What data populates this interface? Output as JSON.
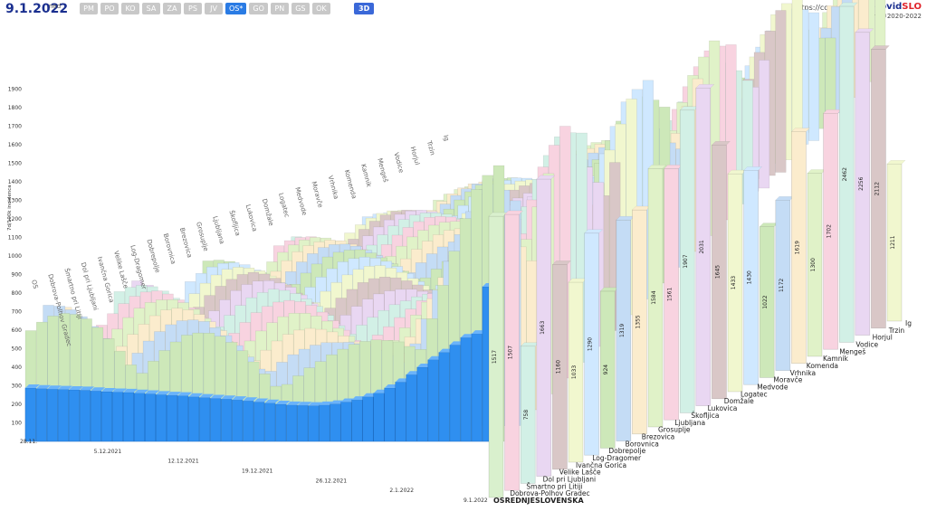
{
  "header": {
    "date": "9.1.2022",
    "weekday": "ned",
    "tabs": [
      "PM",
      "PO",
      "KO",
      "SA",
      "ZA",
      "PS",
      "JV",
      "OS*",
      "GO",
      "PN",
      "GS",
      "OK"
    ],
    "active_tab": "OS*",
    "view_3d": "3D"
  },
  "credit": {
    "url": "https://covidslo.net",
    "brand_a": "covid",
    "brand_b": "SLO",
    "author": "Peter Malovrh, ©2020-2022"
  },
  "colors": {
    "front": "#2f8ff0",
    "palette": [
      "#cde8b9",
      "#c4dcf5",
      "#fbeccd",
      "#e0f2c8",
      "#f8d3e0",
      "#d2f0e6",
      "#e9d7f2",
      "#d9c7c7",
      "#f1f7cf",
      "#cfe8ff"
    ]
  },
  "chart_data": {
    "type": "bar",
    "title": "",
    "ylabel": "7d/100k incidenca",
    "ylim": [
      0,
      1900
    ],
    "y_ticks": [
      100,
      200,
      300,
      400,
      500,
      600,
      700,
      800,
      900,
      1000,
      1100,
      1200,
      1300,
      1400,
      1500,
      1600,
      1700,
      1800,
      1900
    ],
    "x_ticks": [
      "28.11.",
      "5.12.2021",
      "12.12.2021",
      "19.12.2021",
      "26.12.2021",
      "2.1.2022",
      "9.1.2022"
    ],
    "front_series": {
      "name": "OSREDNJESLOVENSKA",
      "values": [
        720,
        710,
        705,
        700,
        695,
        690,
        680,
        670,
        665,
        660,
        650,
        640,
        630,
        620,
        615,
        600,
        590,
        580,
        570,
        560,
        545,
        530,
        515,
        500,
        490,
        485,
        480,
        490,
        505,
        530,
        560,
        600,
        650,
        720,
        800,
        900,
        1000,
        1100,
        1200,
        1300,
        1400,
        1450,
        1517
      ]
    },
    "categories": [
      "OSREDNJESLOVENSKA",
      "Dobrova-Polhov Gradec",
      "Šmartno pri Litiji",
      "Dol pri Ljubljani",
      "Velike Lašče",
      "Ivančna Gorica",
      "Log-Dragomer",
      "Dobrepolje",
      "Borovnica",
      "Brezovica",
      "Grosuplje",
      "Ljubljana",
      "Škofljica",
      "Lukovica",
      "Domžale",
      "Logatec",
      "Medvode",
      "Moravče",
      "Vrhnika",
      "Komenda",
      "Kamnik",
      "Mengeš",
      "Vodice",
      "Horjul",
      "Trzin",
      "Ig"
    ],
    "latest_values": [
      1517,
      1507,
      758,
      1663,
      1160,
      1033,
      1290,
      924,
      1319,
      1355,
      1584,
      1561,
      1907,
      2031,
      1645,
      1433,
      1430,
      1022,
      1172,
      1619,
      1300,
      1702,
      2462,
      2256,
      2112,
      1211
    ],
    "back_labels": [
      "Ig",
      "Trzin",
      "Horjul",
      "Vodice",
      "Mengeš",
      "Kamnik",
      "Komenda",
      "Vrhnika",
      "Moravče",
      "Medvode",
      "Logatec",
      "Domžale",
      "Lukovica",
      "Škofljica",
      "Ljubljana",
      "Grosuplje",
      "Brezovica",
      "Borovnica",
      "Dobrepolje",
      "Log-Dragomer",
      "Velike Lašče",
      "Ivančna Gorica",
      "Dol pri Ljubljani",
      "Šmartno pri Litiji",
      "Dobrova-Polhov Gradec",
      "OS"
    ]
  }
}
